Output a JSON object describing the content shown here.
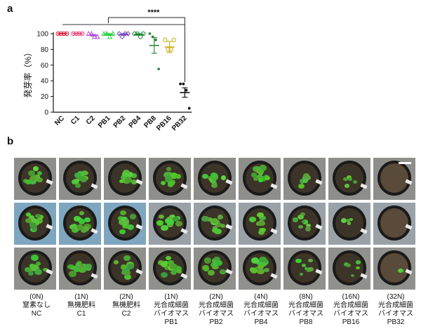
{
  "panel_a_label": "a",
  "panel_b_label": "b",
  "colors": {
    "NC": "#d81b3a",
    "C1": "#ec407a",
    "C2": "#b04fd6",
    "PB1": "#2bd13e",
    "PB2": "#7a49c6",
    "PB4": "#1f8a3a",
    "PB8": "#2e8b3a",
    "PB16": "#c9b018",
    "PB32": "#111111"
  },
  "chart_data": {
    "type": "scatter",
    "ylabel": "発芽率（%）",
    "ylim": [
      0,
      100
    ],
    "yticks": [
      0,
      20,
      40,
      60,
      80,
      100
    ],
    "categories": [
      "NC",
      "C1",
      "C2",
      "PB1",
      "PB2",
      "PB4",
      "PB8",
      "PB16",
      "PB32"
    ],
    "means": [
      100,
      100,
      98,
      99,
      99,
      99,
      85,
      83,
      25
    ],
    "errors": [
      0,
      0,
      1,
      1,
      1,
      1,
      10,
      7,
      6
    ],
    "points": [
      [
        100,
        100,
        100,
        100
      ],
      [
        100,
        100,
        100,
        100
      ],
      [
        100,
        100,
        96,
        96
      ],
      [
        100,
        100,
        96,
        100
      ],
      [
        100,
        96,
        100,
        100
      ],
      [
        100,
        100,
        96,
        100
      ],
      [
        100,
        96,
        92,
        55
      ],
      [
        92,
        80,
        80,
        92
      ],
      [
        36,
        36,
        28,
        5
      ]
    ],
    "significance": {
      "label": "****",
      "from": "NC",
      "bracket_start": "PB1",
      "to": "PB32"
    }
  },
  "pots": {
    "leaf_counts": [
      [
        14,
        14,
        12,
        14,
        13,
        12,
        7,
        5,
        0
      ],
      [
        14,
        13,
        13,
        14,
        14,
        12,
        8,
        4,
        0
      ],
      [
        14,
        13,
        12,
        14,
        14,
        12,
        7,
        5,
        1
      ]
    ]
  },
  "captions": [
    {
      "dose": "(0N)",
      "line1": "窒素なし",
      "line2": "",
      "name": "NC"
    },
    {
      "dose": "(1N)",
      "line1": "無機肥料",
      "line2": "",
      "name": "C1"
    },
    {
      "dose": "(2N)",
      "line1": "無機肥料",
      "line2": "",
      "name": "C2"
    },
    {
      "dose": "(1N)",
      "line1": "光合成細菌",
      "line2": "バイオマス",
      "name": "PB1"
    },
    {
      "dose": "(2N)",
      "line1": "光合成細菌",
      "line2": "バイオマス",
      "name": "PB2"
    },
    {
      "dose": "(4N)",
      "line1": "光合成細菌",
      "line2": "バイオマス",
      "name": "PB4"
    },
    {
      "dose": "(8N)",
      "line1": "光合成細菌",
      "line2": "バイオマス",
      "name": "PB8"
    },
    {
      "dose": "(16N)",
      "line1": "光合成細菌",
      "line2": "バイオマス",
      "name": "PB16"
    },
    {
      "dose": "(32N)",
      "line1": "光合成細菌",
      "line2": "バイオマス",
      "name": "PB32"
    }
  ]
}
